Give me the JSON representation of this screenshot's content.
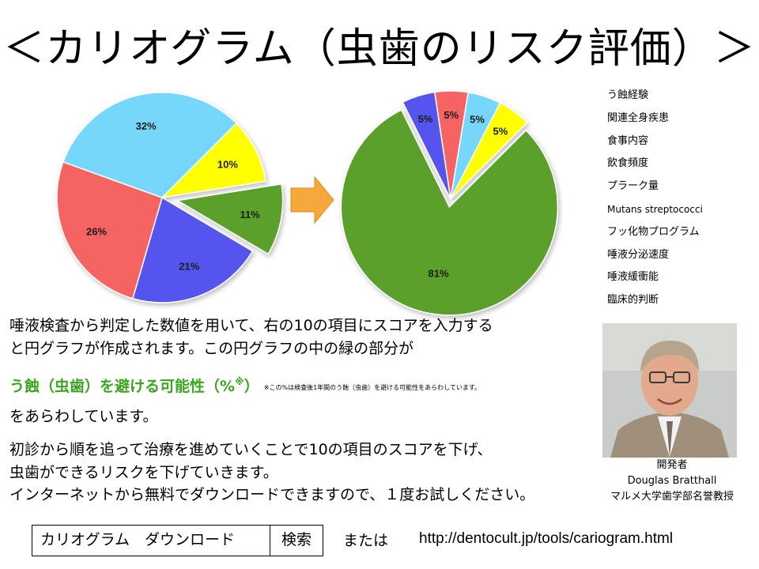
{
  "title": "＜カリオグラム（虫歯のリスク評価）＞",
  "chart_data": [
    {
      "type": "pie",
      "series": [
        {
          "values": [
            10,
            11,
            21,
            26,
            32
          ],
          "labels": [
            "10%",
            "11%",
            "21%",
            "26%",
            "32%"
          ],
          "colors": [
            "#ffff00",
            "#5aa02c",
            "#5555ee",
            "#f56464",
            "#77d7fb"
          ]
        }
      ],
      "exploded_index": 1
    },
    {
      "type": "pie",
      "series": [
        {
          "values": [
            81,
            5,
            5,
            5,
            5
          ],
          "labels": [
            "81%",
            "5%",
            "5%",
            "5%",
            "5%"
          ],
          "colors": [
            "#5aa02c",
            "#5555ee",
            "#f56464",
            "#77d7fb",
            "#ffff00"
          ]
        }
      ],
      "exploded_index": 0
    }
  ],
  "arrow_color": "#f6a93b",
  "factors": [
    "う蝕経験",
    "関連全身疾患",
    "食事内容",
    "飲食頻度",
    "プラーク量",
    "Mutans streptococci",
    "フッ化物プログラム",
    "唾液分泌速度",
    "唾液緩衝能",
    "臨床的判断"
  ],
  "body": {
    "line1": "唾液検査から判定した数値を用いて、右の10の項目にスコアを入力する",
    "line2": "と円グラフが作成されます。この円グラフの中の緑の部分が",
    "line3_green": "う蝕（虫歯）を避ける可能性（%",
    "line3_mark": "※",
    "line3_close": "）",
    "line3_note": "※この%は検査後1年間のう蝕（虫歯）を避ける可能性をあらわしています。",
    "line4": "をあらわしています。",
    "line5": "初診から順を追って治療を進めていくことで10の項目のスコアを下げ、",
    "line6": "虫歯ができるリスクを下げていきます。",
    "line7": "インターネットから無料でダウンロードできますので、１度お試しください。"
  },
  "developer": {
    "role": "開発者",
    "name": "Douglas Bratthall",
    "affiliation": "マルメ大学歯学部名誉教授"
  },
  "search": {
    "term": "カリオグラム　ダウンロード",
    "button_label": "検索"
  },
  "or_text": "または",
  "url": "http://dentocult.jp/tools/cariogram.html"
}
